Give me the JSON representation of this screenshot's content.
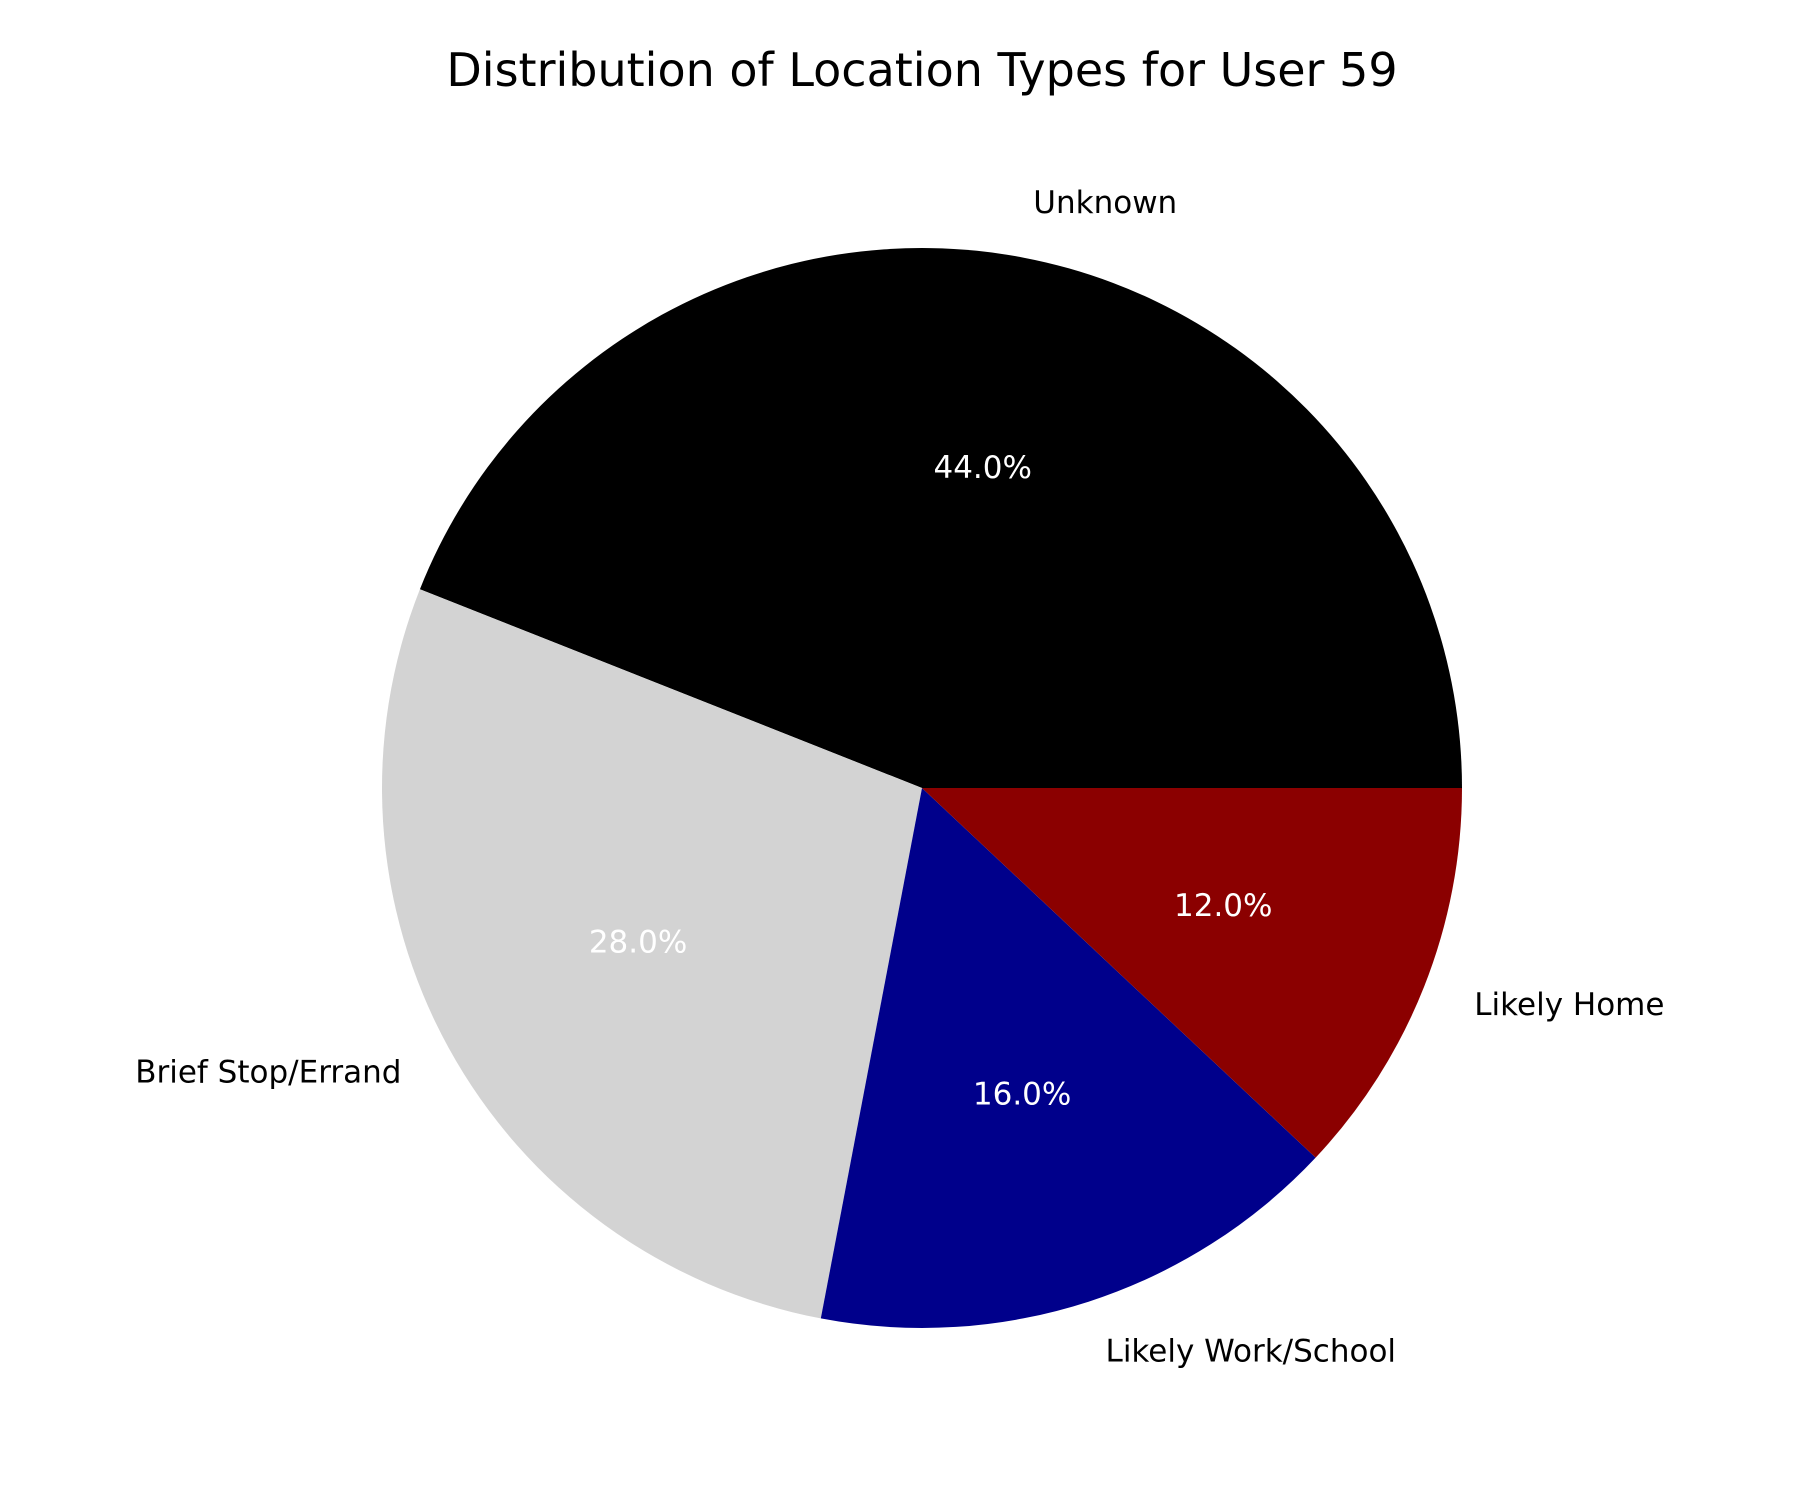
{
  "chart_data": {
    "type": "pie",
    "title": "Distribution of Location Types for User 59",
    "slices": [
      {
        "label": "Unknown",
        "value": 44.0,
        "pct_label": "44.0%",
        "color": "#000000"
      },
      {
        "label": "Brief Stop/Errand",
        "value": 28.0,
        "pct_label": "28.0%",
        "color": "#d3d3d3"
      },
      {
        "label": "Likely Work/School",
        "value": 16.0,
        "pct_label": "16.0%",
        "color": "#00008b"
      },
      {
        "label": "Likely Home",
        "value": 12.0,
        "pct_label": "12.0%",
        "color": "#8b0000"
      }
    ],
    "start_angle_deg": 0,
    "direction": "counterclockwise",
    "legend": "none"
  }
}
